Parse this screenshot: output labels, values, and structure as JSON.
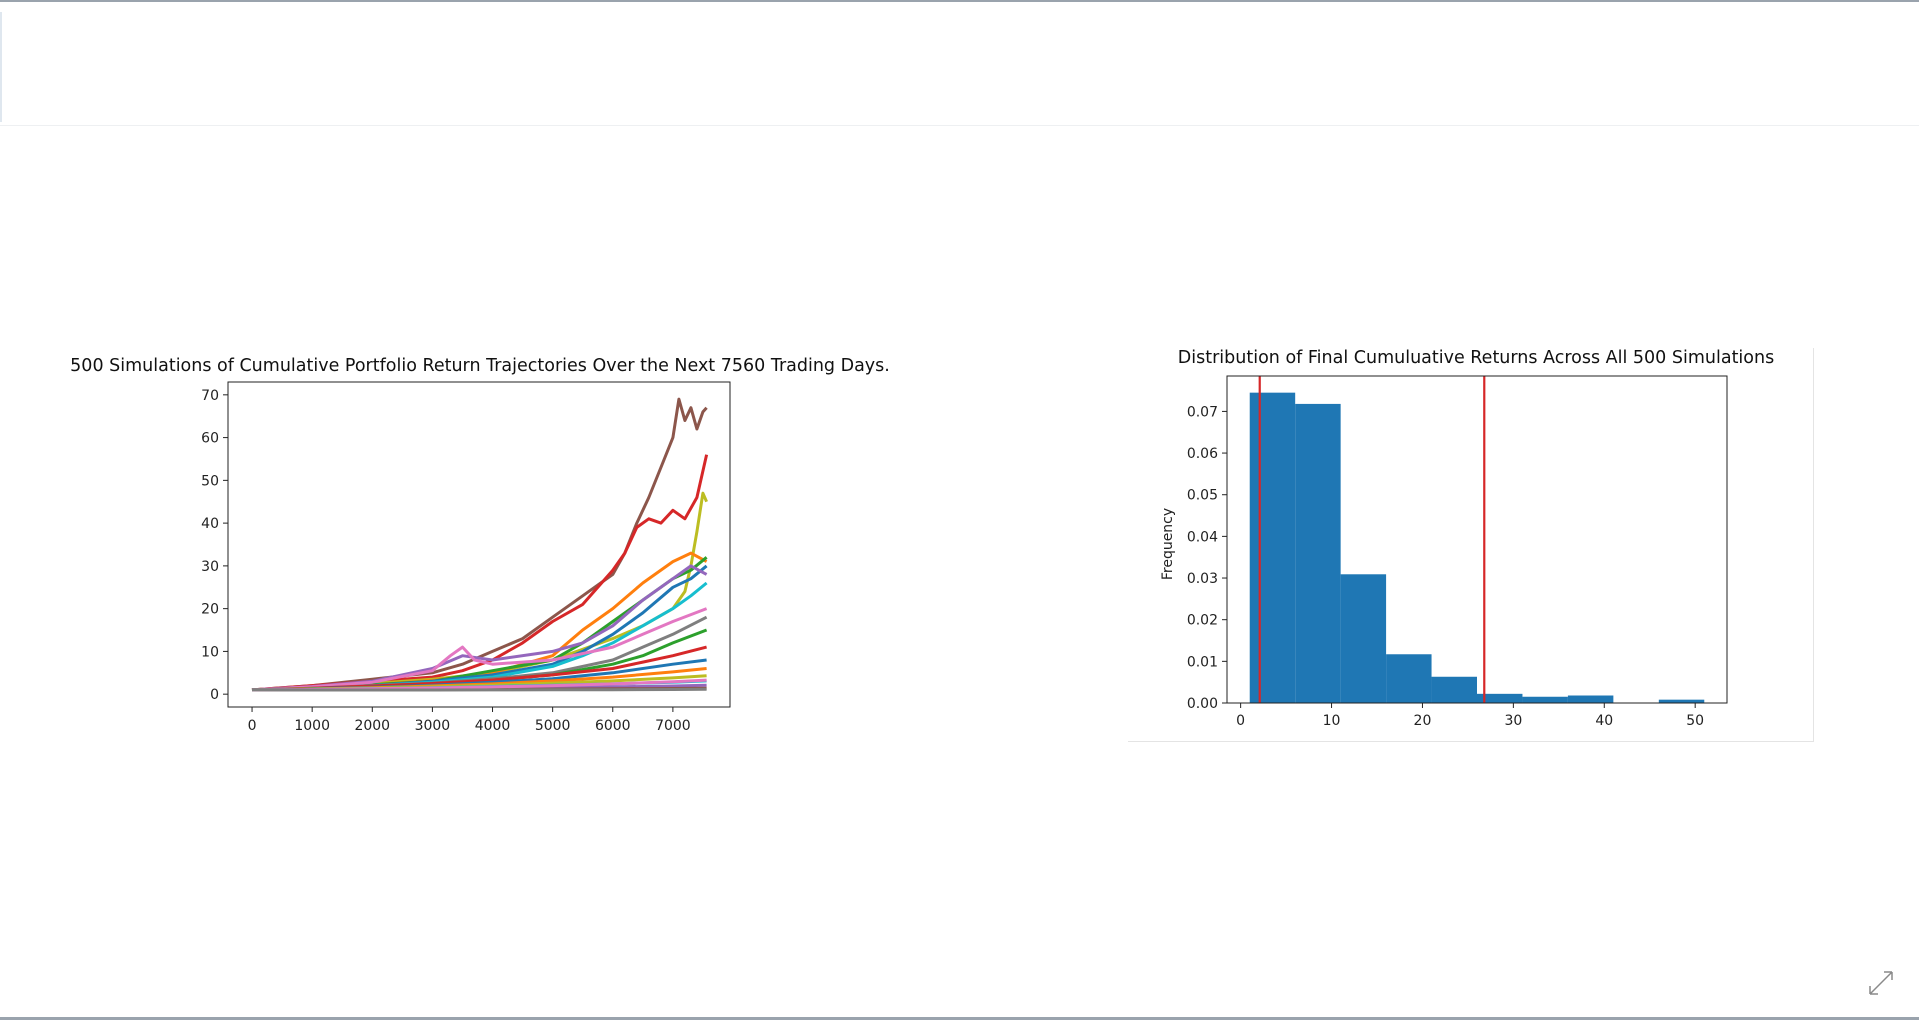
{
  "chart_data": [
    {
      "type": "line",
      "title": "500 Simulations of Cumulative Portfolio Return Trajectories Over the Next 7560 Trading Days.",
      "xlabel": "",
      "ylabel": "",
      "xlim": [
        -400,
        7950
      ],
      "ylim": [
        -3,
        73
      ],
      "xticks": [
        0,
        1000,
        2000,
        3000,
        4000,
        5000,
        6000,
        7000
      ],
      "yticks": [
        0,
        10,
        20,
        30,
        40,
        50,
        60,
        70
      ],
      "grid": false,
      "series": [
        {
          "color": "#8c564b",
          "x": [
            0,
            1000,
            2000,
            3000,
            3500,
            4000,
            4500,
            5000,
            5500,
            6000,
            6200,
            6400,
            6600,
            6800,
            7000,
            7100,
            7200,
            7300,
            7400,
            7500,
            7560
          ],
          "y": [
            1,
            2,
            3.5,
            5,
            7,
            10,
            13,
            18,
            23,
            28,
            33,
            40,
            46,
            53,
            60,
            69,
            64,
            67,
            62,
            66,
            67
          ]
        },
        {
          "color": "#d62728",
          "x": [
            0,
            1000,
            2000,
            3000,
            3500,
            4000,
            4500,
            5000,
            5500,
            6000,
            6200,
            6400,
            6600,
            6800,
            7000,
            7200,
            7400,
            7560
          ],
          "y": [
            1,
            2,
            3,
            4,
            5.5,
            8,
            12,
            17,
            21,
            29,
            33,
            39,
            41,
            40,
            43,
            41,
            46,
            56
          ]
        },
        {
          "color": "#bcbd22",
          "x": [
            0,
            1000,
            2000,
            3000,
            4000,
            5000,
            6000,
            6500,
            7000,
            7200,
            7300,
            7400,
            7500,
            7560
          ],
          "y": [
            1,
            1.7,
            2.5,
            3.5,
            5,
            8,
            13,
            16,
            20,
            24,
            30,
            38,
            47,
            45
          ]
        },
        {
          "color": "#ff7f0e",
          "x": [
            0,
            1000,
            2000,
            3000,
            4000,
            5000,
            5500,
            6000,
            6500,
            7000,
            7300,
            7560
          ],
          "y": [
            1,
            1.6,
            2.2,
            3.2,
            5,
            9,
            15,
            20,
            26,
            31,
            33,
            31
          ]
        },
        {
          "color": "#2ca02c",
          "x": [
            0,
            1000,
            2000,
            3000,
            4000,
            5000,
            5500,
            6000,
            6500,
            7000,
            7300,
            7560
          ],
          "y": [
            1,
            1.5,
            2.2,
            3,
            5.5,
            8,
            12,
            17,
            22,
            27,
            29,
            32
          ]
        },
        {
          "color": "#1f77b4",
          "x": [
            0,
            1000,
            2000,
            3000,
            4000,
            5000,
            5500,
            6000,
            6500,
            7000,
            7300,
            7560
          ],
          "y": [
            1,
            1.4,
            2,
            3,
            4.5,
            7,
            10,
            14,
            19,
            25,
            27,
            30
          ]
        },
        {
          "color": "#9467bd",
          "x": [
            0,
            1000,
            2000,
            3000,
            3500,
            4000,
            5000,
            5500,
            6000,
            6500,
            7000,
            7300,
            7560
          ],
          "y": [
            1,
            1.8,
            3,
            6,
            9,
            8,
            10,
            12,
            16,
            22,
            27,
            30,
            28
          ]
        },
        {
          "color": "#17becf",
          "x": [
            0,
            1000,
            2000,
            3000,
            4000,
            5000,
            5500,
            6000,
            6500,
            7000,
            7300,
            7560
          ],
          "y": [
            1,
            1.5,
            2,
            2.8,
            4,
            6.5,
            9,
            12,
            16,
            20,
            23,
            26
          ]
        },
        {
          "color": "#e377c2",
          "x": [
            0,
            1000,
            2000,
            3000,
            3300,
            3500,
            3700,
            4000,
            5000,
            6000,
            6500,
            7000,
            7560
          ],
          "y": [
            1,
            1.7,
            2.8,
            5.5,
            9,
            11,
            8,
            7,
            8,
            11,
            14,
            17,
            20
          ]
        },
        {
          "color": "#7f7f7f",
          "x": [
            0,
            1000,
            2000,
            3000,
            4000,
            5000,
            6000,
            6500,
            7000,
            7560
          ],
          "y": [
            1,
            1.4,
            2,
            2.6,
            3.6,
            5,
            8,
            11,
            14,
            18
          ]
        },
        {
          "color": "#2ca02c",
          "x": [
            0,
            1000,
            2000,
            3000,
            4000,
            5000,
            6000,
            6500,
            7000,
            7560
          ],
          "y": [
            1,
            1.3,
            1.8,
            2.3,
            3.3,
            4.5,
            7,
            9,
            12,
            15
          ]
        },
        {
          "color": "#d62728",
          "x": [
            0,
            1000,
            2000,
            3000,
            4000,
            5000,
            6000,
            6500,
            7000,
            7560
          ],
          "y": [
            1,
            1.4,
            1.9,
            2.5,
            3.3,
            4.5,
            6,
            7.5,
            9,
            11
          ]
        },
        {
          "color": "#1f77b4",
          "x": [
            0,
            1000,
            2000,
            3000,
            4000,
            5000,
            6000,
            7000,
            7560
          ],
          "y": [
            1,
            1.3,
            1.6,
            2.1,
            2.8,
            3.6,
            5,
            7,
            8
          ]
        },
        {
          "color": "#ff7f0e",
          "x": [
            0,
            1000,
            2000,
            3000,
            4000,
            5000,
            6000,
            7000,
            7560
          ],
          "y": [
            1,
            1.2,
            1.5,
            1.9,
            2.4,
            3.1,
            4,
            5.2,
            6
          ]
        },
        {
          "color": "#bcbd22",
          "x": [
            0,
            1000,
            2000,
            3000,
            4000,
            5000,
            6000,
            7000,
            7560
          ],
          "y": [
            1,
            1.2,
            1.4,
            1.7,
            2.1,
            2.6,
            3.1,
            3.8,
            4.3
          ]
        },
        {
          "color": "#17becf",
          "x": [
            0,
            1000,
            2000,
            3000,
            4000,
            5000,
            6000,
            7000,
            7560
          ],
          "y": [
            1,
            1.1,
            1.3,
            1.5,
            1.8,
            2.1,
            2.4,
            2.8,
            3.1
          ]
        },
        {
          "color": "#9467bd",
          "x": [
            0,
            1000,
            2000,
            3000,
            4000,
            5000,
            6000,
            7000,
            7560
          ],
          "y": [
            1,
            1.05,
            1.1,
            1.2,
            1.35,
            1.5,
            1.7,
            1.9,
            2.1
          ]
        },
        {
          "color": "#8c564b",
          "x": [
            0,
            1000,
            2000,
            3000,
            4000,
            5000,
            6000,
            7000,
            7560
          ],
          "y": [
            1,
            1.02,
            1.05,
            1.08,
            1.12,
            1.18,
            1.25,
            1.33,
            1.4
          ]
        },
        {
          "color": "#e377c2",
          "x": [
            0,
            1000,
            2000,
            3000,
            4000,
            5000,
            6000,
            7000,
            7560
          ],
          "y": [
            1,
            1.1,
            1.25,
            1.45,
            1.7,
            2,
            2.4,
            2.9,
            3.3
          ]
        },
        {
          "color": "#7f7f7f",
          "x": [
            0,
            1000,
            2000,
            3000,
            4000,
            5000,
            6000,
            7000,
            7560
          ],
          "y": [
            1,
            0.98,
            0.97,
            0.98,
            1,
            1.02,
            1.05,
            1.1,
            1.15
          ]
        }
      ]
    },
    {
      "type": "bar",
      "title": "Distribution of Final Cumuluative Returns Across All 500 Simulations",
      "xlabel": "",
      "ylabel": "Frequency",
      "xlim": [
        -1.5,
        53.5
      ],
      "ylim": [
        0,
        0.0785
      ],
      "xticks": [
        0,
        10,
        20,
        30,
        40,
        50
      ],
      "yticks": [
        "0.00",
        "0.01",
        "0.02",
        "0.03",
        "0.04",
        "0.05",
        "0.06",
        "0.07"
      ],
      "grid": false,
      "bin_edges": [
        1,
        6,
        11,
        16,
        21,
        26,
        31,
        36,
        41,
        46,
        51
      ],
      "values": [
        0.0745,
        0.0718,
        0.0309,
        0.0117,
        0.0063,
        0.0022,
        0.0015,
        0.0018,
        0.0,
        0.0008
      ],
      "bar_color": "#1f77b4",
      "vlines": [
        2.1,
        26.8
      ],
      "vline_color": "#d62728"
    }
  ]
}
